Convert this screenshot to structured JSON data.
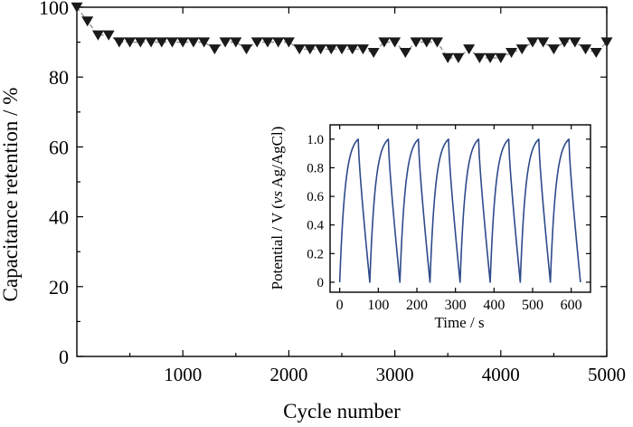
{
  "chart_data": [
    {
      "type": "scatter",
      "xlabel": "Cycle number",
      "ylabel": "Capacitance retention / %",
      "xlim": [
        0,
        5000
      ],
      "ylim": [
        0,
        100
      ],
      "xticks": [
        1000,
        2000,
        3000,
        4000,
        5000
      ],
      "yticks": [
        0,
        20,
        40,
        60,
        80,
        100
      ],
      "marker": "triangle-down",
      "marker_color": "#1a1a1a",
      "line_style": "dashed",
      "line_color": "#888888",
      "series": [
        {
          "x": [
            0,
            100,
            200,
            300,
            400,
            500,
            600,
            700,
            800,
            900,
            1000,
            1100,
            1200,
            1300,
            1400,
            1500,
            1600,
            1700,
            1800,
            1900,
            2000,
            2100,
            2200,
            2300,
            2400,
            2500,
            2600,
            2700,
            2800,
            2900,
            3000,
            3100,
            3200,
            3300,
            3400,
            3500,
            3600,
            3700,
            3800,
            3900,
            4000,
            4100,
            4200,
            4300,
            4400,
            4500,
            4600,
            4700,
            4800,
            4900,
            5000
          ],
          "values": [
            100,
            96,
            92,
            92,
            90,
            90,
            90,
            90,
            90,
            90,
            90,
            90,
            90,
            88,
            90,
            90,
            88,
            90,
            90,
            90,
            90,
            88,
            88,
            88,
            88,
            88,
            88,
            88,
            87,
            90,
            90,
            87,
            90,
            90,
            90,
            85.5,
            85.5,
            88,
            85.5,
            85.5,
            85.5,
            87,
            88,
            90,
            90,
            88,
            90,
            90,
            88,
            87,
            90
          ]
        }
      ]
    },
    {
      "type": "line",
      "xlabel": "Time / s",
      "ylabel_parts": [
        "Potential / V (",
        "vs",
        " Ag/AgCl)"
      ],
      "xlim": [
        -25,
        650
      ],
      "ylim": [
        -0.07,
        1.1
      ],
      "xticks": [
        0,
        100,
        200,
        300,
        400,
        500,
        600
      ],
      "yticks": [
        0,
        0.2,
        0.4,
        0.6,
        0.8,
        1.0
      ],
      "ytick_labels": [
        "0",
        "0.2",
        "0.4",
        "0.6",
        "0.8",
        "1.0"
      ],
      "line_color": "#2e4a8a",
      "cycles": 8,
      "charge_time": 48,
      "discharge_time": 30
    }
  ]
}
